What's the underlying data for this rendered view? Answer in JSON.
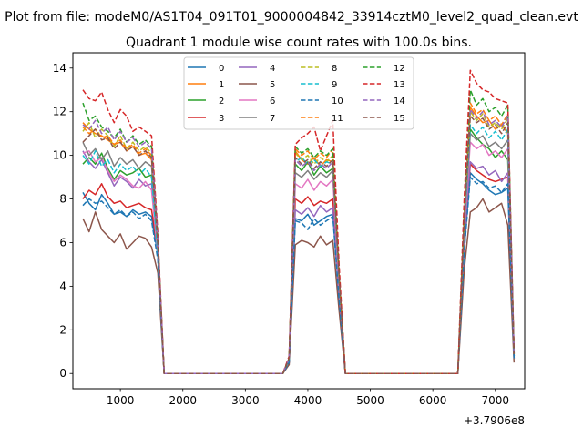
{
  "chart_data": {
    "type": "line",
    "suptitle": "Plot from file: modeM0/AS1T04_091T01_9000004842_33914cztM0_level2_quad_clean.evt",
    "title": "Quadrant 1 module wise count rates with 100.0s bins.",
    "xlabel": "",
    "ylabel": "",
    "x_offset_label": "+3.7906e8",
    "xlim": [
      240,
      7470
    ],
    "ylim": [
      -0.7,
      14.7
    ],
    "xticks": [
      1000,
      2000,
      3000,
      4000,
      5000,
      6000,
      7000
    ],
    "yticks": [
      0,
      2,
      4,
      6,
      8,
      10,
      12,
      14
    ],
    "legend_position": "upper-center",
    "legend_columns": 4,
    "x": [
      400,
      500,
      600,
      700,
      800,
      900,
      1000,
      1100,
      1200,
      1300,
      1400,
      1500,
      1600,
      1700,
      1800,
      1900,
      2000,
      2100,
      2200,
      2300,
      2400,
      2500,
      2600,
      2700,
      2800,
      2900,
      3000,
      3100,
      3200,
      3300,
      3400,
      3500,
      3600,
      3700,
      3800,
      3900,
      4000,
      4100,
      4200,
      4300,
      4400,
      4500,
      4600,
      4700,
      4800,
      4900,
      5000,
      5100,
      5200,
      5300,
      5400,
      5500,
      5600,
      5700,
      5800,
      5900,
      6000,
      6100,
      6200,
      6300,
      6400,
      6500,
      6600,
      6700,
      6800,
      6900,
      7000,
      7100,
      7200,
      7300
    ],
    "series": [
      {
        "name": "0",
        "color": "#1f77b4",
        "dash": "solid",
        "values": [
          8.3,
          7.8,
          7.5,
          8.2,
          7.8,
          7.3,
          7.4,
          7.2,
          7.5,
          7.3,
          7.4,
          7.2,
          5.4,
          0,
          0,
          0,
          0,
          0,
          0,
          0,
          0,
          0,
          0,
          0,
          0,
          0,
          0,
          0,
          0,
          0,
          0,
          0,
          0,
          0.5,
          7.1,
          7.0,
          7.3,
          6.8,
          7.0,
          7.2,
          7.3,
          3.5,
          0,
          0,
          0,
          0,
          0,
          0,
          0,
          0,
          0,
          0,
          0,
          0,
          0,
          0,
          0,
          0,
          0,
          0,
          0,
          5.6,
          9.2,
          8.9,
          8.7,
          8.4,
          8.2,
          8.3,
          8.5,
          0.8
        ]
      },
      {
        "name": "1",
        "color": "#ff7f0e",
        "dash": "solid",
        "values": [
          11.5,
          11.2,
          11.0,
          10.9,
          10.7,
          10.5,
          10.6,
          10.2,
          10.4,
          10.0,
          10.1,
          9.8,
          6.0,
          0,
          0,
          0,
          0,
          0,
          0,
          0,
          0,
          0,
          0,
          0,
          0,
          0,
          0,
          0,
          0,
          0,
          0,
          0,
          0,
          0.6,
          10.2,
          9.8,
          9.6,
          9.9,
          9.5,
          9.8,
          9.7,
          4.5,
          0,
          0,
          0,
          0,
          0,
          0,
          0,
          0,
          0,
          0,
          0,
          0,
          0,
          0,
          0,
          0,
          0,
          0,
          0,
          7.0,
          12.2,
          11.8,
          11.5,
          11.6,
          11.2,
          11.4,
          11.0,
          0.9
        ]
      },
      {
        "name": "2",
        "color": "#2ca02c",
        "dash": "solid",
        "values": [
          9.6,
          9.9,
          9.6,
          10.1,
          9.4,
          8.9,
          9.3,
          9.1,
          9.2,
          9.4,
          9.0,
          9.1,
          5.4,
          0,
          0,
          0,
          0,
          0,
          0,
          0,
          0,
          0,
          0,
          0,
          0,
          0,
          0,
          0,
          0,
          0,
          0,
          0,
          0,
          0.6,
          9.6,
          9.3,
          9.7,
          9.1,
          9.5,
          9.2,
          9.4,
          4.3,
          0,
          0,
          0,
          0,
          0,
          0,
          0,
          0,
          0,
          0,
          0,
          0,
          0,
          0,
          0,
          0,
          0,
          0,
          0,
          6.7,
          11.2,
          10.8,
          10.5,
          10.3,
          9.9,
          10.2,
          9.8,
          0.8
        ]
      },
      {
        "name": "3",
        "color": "#d62728",
        "dash": "solid",
        "values": [
          8.0,
          8.4,
          8.2,
          8.7,
          8.1,
          7.8,
          7.9,
          7.6,
          7.7,
          7.8,
          7.6,
          7.5,
          5.6,
          0,
          0,
          0,
          0,
          0,
          0,
          0,
          0,
          0,
          0,
          0,
          0,
          0,
          0,
          0,
          0,
          0,
          0,
          0,
          0,
          0.5,
          8.0,
          7.8,
          8.1,
          7.7,
          7.9,
          7.8,
          8.0,
          3.7,
          0,
          0,
          0,
          0,
          0,
          0,
          0,
          0,
          0,
          0,
          0,
          0,
          0,
          0,
          0,
          0,
          0,
          0,
          0,
          5.8,
          9.6,
          9.3,
          9.1,
          8.9,
          8.8,
          8.9,
          9.0,
          0.7
        ]
      },
      {
        "name": "4",
        "color": "#9467bd",
        "dash": "solid",
        "values": [
          10.2,
          9.7,
          9.4,
          9.8,
          9.2,
          8.6,
          9.0,
          8.8,
          8.5,
          8.9,
          8.6,
          8.7,
          5.3,
          0,
          0,
          0,
          0,
          0,
          0,
          0,
          0,
          0,
          0,
          0,
          0,
          0,
          0,
          0,
          0,
          0,
          0,
          0,
          0,
          0.6,
          7.5,
          7.3,
          7.6,
          7.2,
          7.7,
          7.4,
          7.6,
          3.6,
          0,
          0,
          0,
          0,
          0,
          0,
          0,
          0,
          0,
          0,
          0,
          0,
          0,
          0,
          0,
          0,
          0,
          0,
          0,
          6.0,
          9.7,
          9.4,
          9.5,
          9.1,
          9.3,
          8.8,
          9.2,
          0.7
        ]
      },
      {
        "name": "5",
        "color": "#8c564b",
        "dash": "solid",
        "values": [
          7.1,
          6.5,
          7.4,
          6.6,
          6.3,
          6.0,
          6.4,
          5.7,
          6.0,
          6.3,
          6.2,
          5.8,
          4.6,
          0,
          0,
          0,
          0,
          0,
          0,
          0,
          0,
          0,
          0,
          0,
          0,
          0,
          0,
          0,
          0,
          0,
          0,
          0,
          0,
          0.4,
          5.9,
          6.1,
          6.0,
          5.8,
          6.3,
          5.9,
          6.1,
          2.9,
          0,
          0,
          0,
          0,
          0,
          0,
          0,
          0,
          0,
          0,
          0,
          0,
          0,
          0,
          0,
          0,
          0,
          0,
          0,
          4.7,
          7.4,
          7.6,
          8.0,
          7.4,
          7.6,
          7.8,
          6.8,
          0.5
        ]
      },
      {
        "name": "6",
        "color": "#e377c2",
        "dash": "solid",
        "values": [
          10.1,
          10.2,
          9.7,
          9.9,
          9.3,
          8.8,
          9.1,
          8.9,
          8.6,
          8.5,
          8.8,
          8.4,
          5.4,
          0,
          0,
          0,
          0,
          0,
          0,
          0,
          0,
          0,
          0,
          0,
          0,
          0,
          0,
          0,
          0,
          0,
          0,
          0,
          0,
          0.6,
          8.7,
          8.5,
          8.9,
          8.4,
          8.8,
          8.6,
          8.9,
          4.1,
          0,
          0,
          0,
          0,
          0,
          0,
          0,
          0,
          0,
          0,
          0,
          0,
          0,
          0,
          0,
          0,
          0,
          0,
          0,
          6.4,
          10.6,
          10.3,
          10.5,
          10.0,
          10.2,
          9.9,
          10.3,
          0.8
        ]
      },
      {
        "name": "7",
        "color": "#7f7f7f",
        "dash": "solid",
        "values": [
          10.6,
          10.0,
          10.3,
          9.8,
          10.2,
          9.5,
          9.9,
          9.6,
          9.8,
          9.4,
          9.7,
          9.5,
          5.6,
          0,
          0,
          0,
          0,
          0,
          0,
          0,
          0,
          0,
          0,
          0,
          0,
          0,
          0,
          0,
          0,
          0,
          0,
          0,
          0,
          0.6,
          9.2,
          9.0,
          9.3,
          8.9,
          9.2,
          9.0,
          9.3,
          4.3,
          0,
          0,
          0,
          0,
          0,
          0,
          0,
          0,
          0,
          0,
          0,
          0,
          0,
          0,
          0,
          0,
          0,
          0,
          0,
          6.6,
          11.0,
          10.7,
          10.9,
          10.4,
          10.6,
          10.3,
          10.7,
          0.8
        ]
      },
      {
        "name": "8",
        "color": "#bcbd22",
        "dash": "dashed",
        "values": [
          11.1,
          11.5,
          10.8,
          11.2,
          10.9,
          10.4,
          10.9,
          10.3,
          10.6,
          10.2,
          10.4,
          10.1,
          6.0,
          0,
          0,
          0,
          0,
          0,
          0,
          0,
          0,
          0,
          0,
          0,
          0,
          0,
          0,
          0,
          0,
          0,
          0,
          0,
          0,
          0.7,
          10.1,
          9.8,
          10.0,
          9.6,
          9.9,
          9.7,
          10.0,
          4.6,
          0,
          0,
          0,
          0,
          0,
          0,
          0,
          0,
          0,
          0,
          0,
          0,
          0,
          0,
          0,
          0,
          0,
          0,
          0,
          7.2,
          12.0,
          11.6,
          11.9,
          11.3,
          11.5,
          11.2,
          11.7,
          0.9
        ]
      },
      {
        "name": "9",
        "color": "#17becf",
        "dash": "dashed",
        "values": [
          10.0,
          9.6,
          10.2,
          9.5,
          9.8,
          9.2,
          9.6,
          9.3,
          9.5,
          9.1,
          9.4,
          9.0,
          5.5,
          0,
          0,
          0,
          0,
          0,
          0,
          0,
          0,
          0,
          0,
          0,
          0,
          0,
          0,
          0,
          0,
          0,
          0,
          0,
          0,
          0.6,
          9.7,
          9.9,
          9.6,
          9.8,
          9.5,
          9.7,
          9.6,
          4.4,
          0,
          0,
          0,
          0,
          0,
          0,
          0,
          0,
          0,
          0,
          0,
          0,
          0,
          0,
          0,
          0,
          0,
          0,
          0,
          6.8,
          11.4,
          11.0,
          11.3,
          10.8,
          11.1,
          10.7,
          11.2,
          0.8
        ]
      },
      {
        "name": "10",
        "color": "#1f77b4",
        "dash": "dashed",
        "values": [
          7.7,
          8.0,
          7.8,
          7.9,
          7.6,
          7.3,
          7.5,
          7.2,
          7.4,
          7.1,
          7.3,
          7.0,
          5.2,
          0,
          0,
          0,
          0,
          0,
          0,
          0,
          0,
          0,
          0,
          0,
          0,
          0,
          0,
          0,
          0,
          0,
          0,
          0,
          0,
          0.5,
          7.0,
          6.9,
          6.6,
          7.1,
          6.8,
          7.0,
          7.2,
          3.4,
          0,
          0,
          0,
          0,
          0,
          0,
          0,
          0,
          0,
          0,
          0,
          0,
          0,
          0,
          0,
          0,
          0,
          0,
          0,
          5.5,
          9.0,
          8.7,
          8.8,
          8.5,
          8.6,
          8.3,
          8.7,
          0.7
        ]
      },
      {
        "name": "11",
        "color": "#ff7f0e",
        "dash": "dashed",
        "values": [
          11.3,
          11.0,
          11.2,
          10.8,
          10.9,
          10.5,
          10.7,
          10.3,
          10.5,
          10.1,
          10.3,
          10.0,
          6.0,
          0,
          0,
          0,
          0,
          0,
          0,
          0,
          0,
          0,
          0,
          0,
          0,
          0,
          0,
          0,
          0,
          0,
          0,
          0,
          0,
          0.7,
          10.3,
          10.0,
          10.2,
          9.8,
          10.1,
          9.9,
          10.3,
          4.6,
          0,
          0,
          0,
          0,
          0,
          0,
          0,
          0,
          0,
          0,
          0,
          0,
          0,
          0,
          0,
          0,
          0,
          0,
          0,
          7.1,
          12.4,
          11.9,
          12.1,
          11.6,
          11.8,
          11.4,
          11.9,
          0.9
        ]
      },
      {
        "name": "12",
        "color": "#2ca02c",
        "dash": "dashed",
        "values": [
          12.4,
          11.6,
          11.8,
          11.3,
          11.1,
          10.8,
          11.2,
          10.6,
          10.9,
          10.5,
          10.7,
          10.4,
          6.2,
          0,
          0,
          0,
          0,
          0,
          0,
          0,
          0,
          0,
          0,
          0,
          0,
          0,
          0,
          0,
          0,
          0,
          0,
          0,
          0,
          0.7,
          10.4,
          10.1,
          10.3,
          9.9,
          10.2,
          10.0,
          10.3,
          4.7,
          0,
          0,
          0,
          0,
          0,
          0,
          0,
          0,
          0,
          0,
          0,
          0,
          0,
          0,
          0,
          0,
          0,
          0,
          0,
          7.3,
          13.0,
          12.3,
          12.6,
          12.0,
          12.2,
          11.8,
          12.3,
          0.9
        ]
      },
      {
        "name": "13",
        "color": "#d62728",
        "dash": "dashed",
        "values": [
          13.0,
          12.6,
          12.5,
          12.9,
          12.1,
          11.5,
          12.1,
          11.8,
          11.1,
          11.3,
          11.1,
          10.9,
          6.4,
          0,
          0,
          0,
          0,
          0,
          0,
          0,
          0,
          0,
          0,
          0,
          0,
          0,
          0,
          0,
          0,
          0,
          0,
          0,
          0,
          0.8,
          10.5,
          10.8,
          11.0,
          11.3,
          10.2,
          10.9,
          11.6,
          5.0,
          0,
          0,
          0,
          0,
          0,
          0,
          0,
          0,
          0,
          0,
          0,
          0,
          0,
          0,
          0,
          0,
          0,
          0,
          0,
          7.9,
          13.9,
          13.3,
          13.0,
          12.9,
          12.6,
          12.5,
          12.4,
          1.0
        ]
      },
      {
        "name": "14",
        "color": "#9467bd",
        "dash": "dashed",
        "values": [
          11.4,
          11.2,
          11.6,
          11.0,
          11.3,
          10.7,
          11.1,
          10.6,
          10.8,
          10.4,
          10.6,
          10.3,
          6.1,
          0,
          0,
          0,
          0,
          0,
          0,
          0,
          0,
          0,
          0,
          0,
          0,
          0,
          0,
          0,
          0,
          0,
          0,
          0,
          0,
          0.7,
          9.8,
          9.5,
          9.7,
          9.3,
          9.6,
          9.4,
          9.7,
          4.4,
          0,
          0,
          0,
          0,
          0,
          0,
          0,
          0,
          0,
          0,
          0,
          0,
          0,
          0,
          0,
          0,
          0,
          0,
          0,
          6.9,
          12.1,
          11.7,
          12.0,
          11.4,
          11.6,
          11.3,
          11.8,
          0.9
        ]
      },
      {
        "name": "15",
        "color": "#8c564b",
        "dash": "dashed",
        "values": [
          10.6,
          10.9,
          11.2,
          10.7,
          10.8,
          10.3,
          10.6,
          10.2,
          10.4,
          10.0,
          10.2,
          9.9,
          5.9,
          0,
          0,
          0,
          0,
          0,
          0,
          0,
          0,
          0,
          0,
          0,
          0,
          0,
          0,
          0,
          0,
          0,
          0,
          0,
          0,
          0.7,
          9.9,
          9.6,
          9.8,
          9.4,
          9.7,
          9.5,
          9.8,
          4.5,
          0,
          0,
          0,
          0,
          0,
          0,
          0,
          0,
          0,
          0,
          0,
          0,
          0,
          0,
          0,
          0,
          0,
          0,
          0,
          7.0,
          11.8,
          11.5,
          11.7,
          11.2,
          11.4,
          11.0,
          11.5,
          0.9
        ]
      }
    ]
  }
}
